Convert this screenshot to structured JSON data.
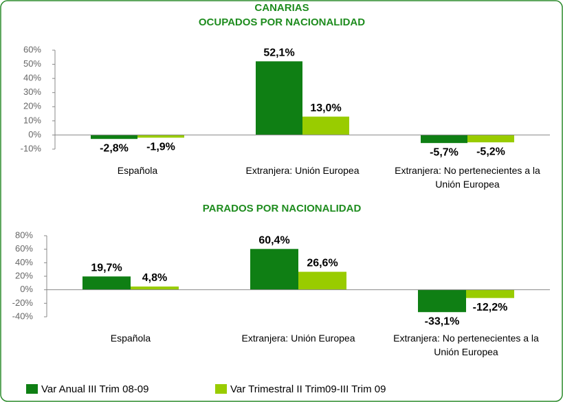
{
  "chart_data": [
    {
      "type": "bar",
      "title": "CANARIAS",
      "subtitle": "OCUPADOS POR NACIONALIDAD",
      "categories": [
        "Española",
        "Extranjera: Unión Europea",
        "Extranjera: No pertenecientes a la Unión Europea"
      ],
      "series": [
        {
          "name": "Var Anual III Trim 08-09",
          "color": "#0f7f14",
          "values": [
            -2.8,
            52.1,
            -5.7
          ],
          "value_labels": [
            "-2,8%",
            "52,1%",
            "-5,7%"
          ]
        },
        {
          "name": "Var Trimestral II Trim09-III Trim 09",
          "color": "#99cc00",
          "values": [
            -1.9,
            13.0,
            -5.2
          ],
          "value_labels": [
            "-1,9%",
            "13,0%",
            "-5,2%"
          ]
        }
      ],
      "ylim": [
        -10,
        60
      ],
      "yticks": [
        {
          "value": -10,
          "label": "-10%"
        },
        {
          "value": 0,
          "label": "0%"
        },
        {
          "value": 10,
          "label": "10%"
        },
        {
          "value": 20,
          "label": "20%"
        },
        {
          "value": 30,
          "label": "30%"
        },
        {
          "value": 40,
          "label": "40%"
        },
        {
          "value": 50,
          "label": "50%"
        },
        {
          "value": 60,
          "label": "60%"
        }
      ],
      "grid": false
    },
    {
      "type": "bar",
      "title": "PARADOS POR NACIONALIDAD",
      "categories": [
        "Española",
        "Extranjera: Unión Europea",
        "Extranjera: No pertenecientes a la Unión Europea"
      ],
      "series": [
        {
          "color": "#0f7f14",
          "values": [
            19.7,
            60.4,
            -33.1
          ],
          "value_labels": [
            "19,7%",
            "60,4%",
            "-33,1%"
          ]
        },
        {
          "color": "#99cc00",
          "values": [
            4.8,
            26.6,
            -12.2
          ],
          "value_labels": [
            "4,8%",
            "26,6%",
            "-12,2%"
          ]
        }
      ],
      "ylim": [
        -40,
        80
      ],
      "yticks": [
        {
          "value": -40,
          "label": "-40%"
        },
        {
          "value": -20,
          "label": "-20%"
        },
        {
          "value": 0,
          "label": "0%"
        },
        {
          "value": 20,
          "label": "20%"
        },
        {
          "value": 40,
          "label": "40%"
        },
        {
          "value": 60,
          "label": "60%"
        },
        {
          "value": 80,
          "label": "80%"
        }
      ],
      "grid": false
    }
  ]
}
